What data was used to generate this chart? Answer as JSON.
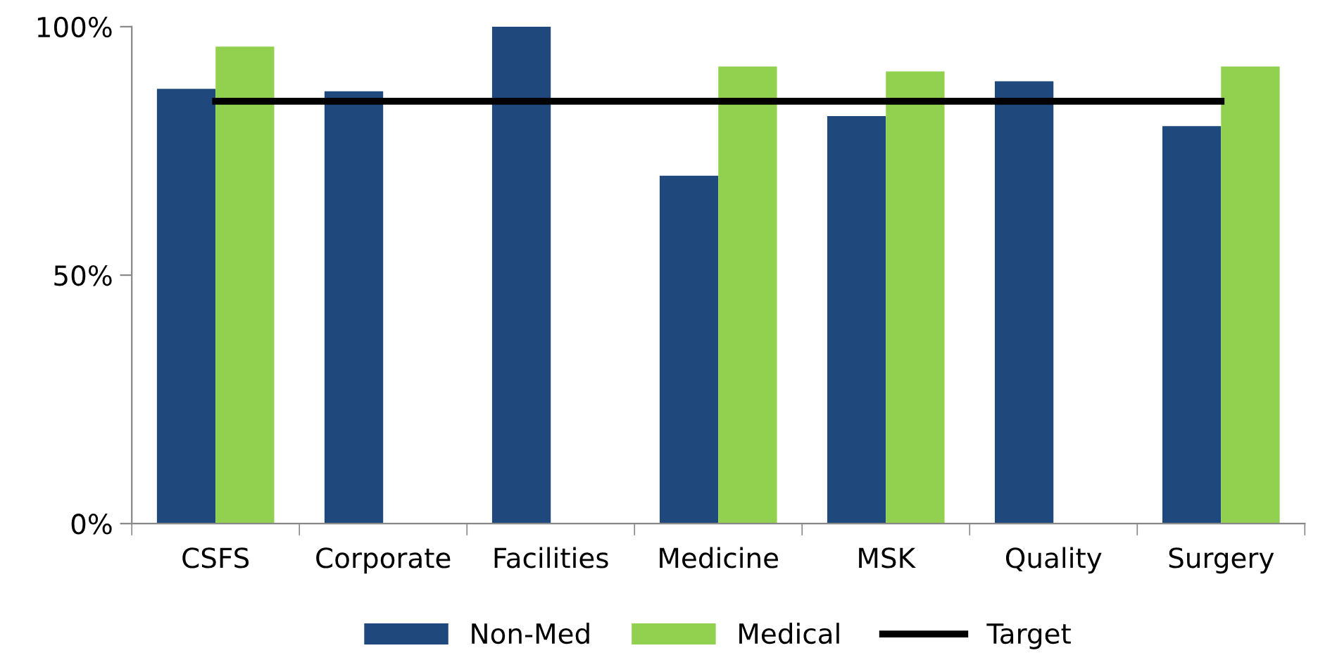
{
  "chart_data": {
    "type": "bar",
    "categories": [
      "CSFS",
      "Corporate",
      "Facilities",
      "Medicine",
      "MSK",
      "Quality",
      "Surgery"
    ],
    "series": [
      {
        "name": "Non-Med",
        "color": "#1f497d",
        "values": [
          87.5,
          87,
          100,
          70,
          82,
          89,
          80
        ]
      },
      {
        "name": "Medical",
        "color": "#92d050",
        "values": [
          96,
          null,
          null,
          92,
          91,
          null,
          92
        ]
      },
      {
        "name": "Target",
        "type": "line",
        "color": "#000000",
        "values": [
          85,
          85,
          85,
          85,
          85,
          85,
          85
        ]
      }
    ],
    "ylim": [
      0,
      100
    ],
    "yticks": [
      {
        "value": 0,
        "label": "0%"
      },
      {
        "value": 50,
        "label": "50%"
      },
      {
        "value": 100,
        "label": "100%"
      }
    ],
    "grid": false,
    "legend": "bottom",
    "marker": "none",
    "line_style": "solid"
  }
}
